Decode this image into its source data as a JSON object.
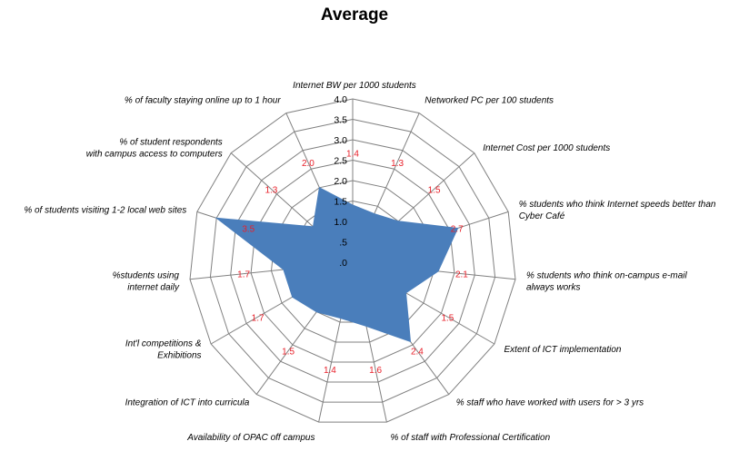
{
  "chart_data": {
    "type": "radar",
    "title": "Average",
    "categories": [
      "Internet BW per 1000 students",
      "Networked PC per 100 students",
      "Internet Cost per 1000 students",
      "% students who think Internet speeds better than Cyber Café",
      "% students who think on-campus e-mail always works",
      "Extent of ICT implementation",
      "% staff who have worked with users for > 3 yrs",
      "% of staff with Professional Certification",
      "Availability of OPAC off campus",
      "Integration of ICT into curricula",
      "Int'l competitions & Exhibitions",
      "%students using internet daily",
      "% of students visiting 1-2  local web sites",
      "% of student respondents with campus access to computers",
      "% of faculty staying online up to 1 hour"
    ],
    "category_lines": [
      [
        "Internet BW per 1000 students"
      ],
      [
        "Networked PC per 100 students"
      ],
      [
        "Internet Cost per 1000 students"
      ],
      [
        "% students who think Internet speeds better than",
        "Cyber Café"
      ],
      [
        "% students who think on-campus e-mail",
        "always works"
      ],
      [
        "Extent of ICT implementation"
      ],
      [
        "% staff who have worked with users for > 3 yrs"
      ],
      [
        "% of staff with Professional Certification"
      ],
      [
        "Availability of OPAC off campus"
      ],
      [
        "Integration of ICT into curricula"
      ],
      [
        "Int'l competitions &",
        "Exhibitions"
      ],
      [
        "%students using",
        "internet daily"
      ],
      [
        "% of students visiting 1-2  local web sites"
      ],
      [
        "% of student respondents",
        "with campus access to computers"
      ],
      [
        "% of faculty staying online up to 1 hour"
      ]
    ],
    "series": [
      {
        "values": [
          1.4,
          1.3,
          1.5,
          2.7,
          2.1,
          1.5,
          2.4,
          1.6,
          1.4,
          1.5,
          1.7,
          1.7,
          3.5,
          1.3,
          2.0
        ],
        "data_labels": [
          "1.4",
          "1.3",
          "1.5",
          "2.7",
          "2.1",
          "1.5",
          "2.4",
          "1.6",
          "1.4",
          "1.5",
          "1.7",
          "1.7",
          "3.5",
          "1.3",
          "2.0"
        ]
      }
    ],
    "ylim": [
      0,
      4.0
    ],
    "ticks": [
      0,
      0.5,
      1.0,
      1.5,
      2.0,
      2.5,
      3.0,
      3.5,
      4.0
    ],
    "tick_labels": [
      ".0",
      ".5",
      "1.0",
      "1.5",
      "2.0",
      "2.5",
      "3.0",
      "3.5",
      "4.0"
    ],
    "grid": true,
    "legend": "none",
    "colors": {
      "fill": "#4a7ebb",
      "grid": "#808080",
      "data_label": "#e8202a"
    }
  }
}
